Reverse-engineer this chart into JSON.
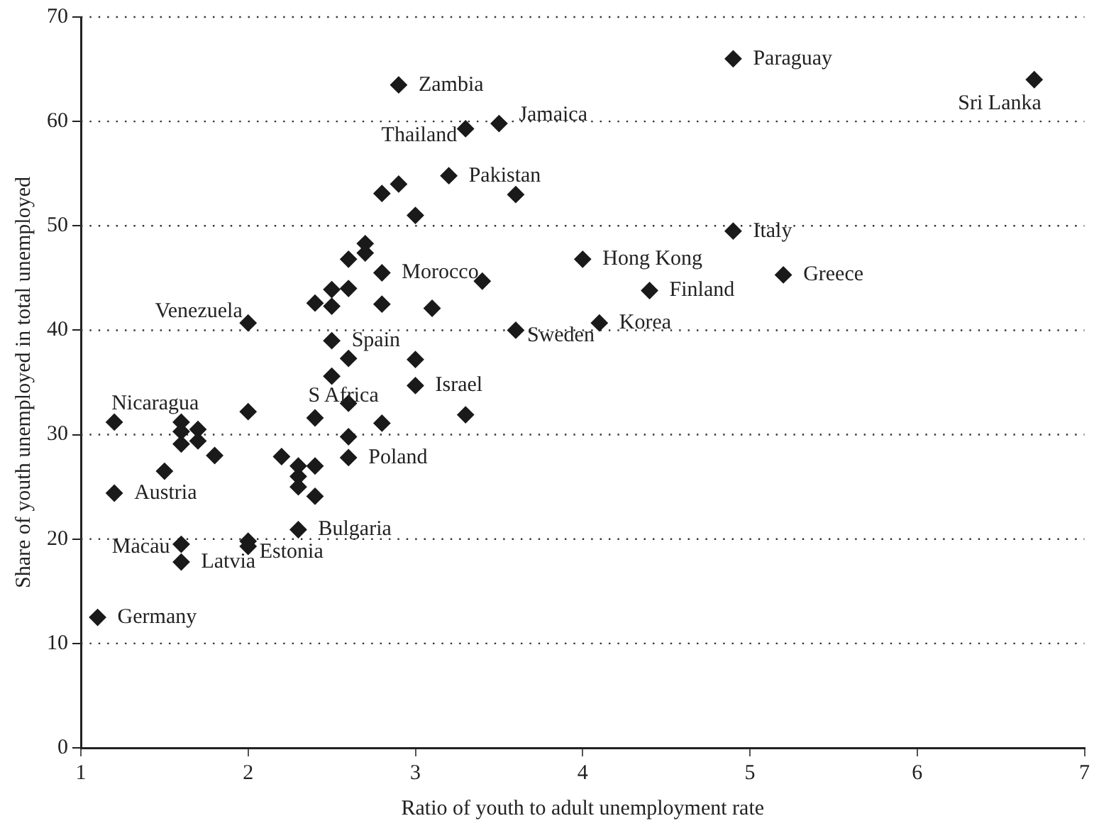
{
  "chart_data": {
    "type": "scatter",
    "xlabel": "Ratio of youth to adult unemployment rate",
    "ylabel": "Share of youth unemployed in total unemployed",
    "xlim": [
      1,
      7
    ],
    "xticks": [
      1,
      2,
      3,
      4,
      5,
      6,
      7
    ],
    "ylim": [
      0,
      70
    ],
    "yticks": [
      0,
      10,
      20,
      30,
      40,
      50,
      60,
      70
    ],
    "grid": "y",
    "marker": "diamond",
    "legend": false,
    "series": [
      {
        "color": "#1a1a1a",
        "x": [
          4.9,
          6.7,
          2.9,
          3.3,
          3.5,
          3.2,
          4.9,
          4.0,
          5.2,
          4.4,
          2.8,
          4.1,
          3.6,
          2.0,
          2.5,
          3.0,
          2.0,
          1.2,
          2.6,
          1.2,
          2.3,
          1.6,
          2.0,
          1.6,
          1.1,
          3.6,
          2.8,
          2.9,
          3.0,
          2.7,
          2.7,
          2.6,
          3.4,
          2.5,
          2.6,
          2.4,
          2.5,
          2.8,
          3.1,
          2.6,
          3.0,
          2.5,
          2.6,
          2.4,
          2.8,
          3.3,
          2.6,
          1.6,
          1.6,
          1.7,
          1.6,
          1.7,
          1.8,
          1.5,
          2.2,
          2.3,
          2.4,
          2.3,
          2.3,
          2.4,
          2.0
        ],
        "values": [
          66,
          64,
          63.5,
          59.3,
          59.8,
          54.8,
          49.5,
          46.8,
          45.3,
          43.8,
          45.5,
          40.7,
          40,
          40.7,
          39,
          34.7,
          32.2,
          31.2,
          27.8,
          24.4,
          20.9,
          19.5,
          19.3,
          17.8,
          12.5,
          53,
          53.1,
          54,
          51,
          48.3,
          47.4,
          46.8,
          44.7,
          43.9,
          44,
          42.6,
          42.3,
          42.5,
          42.1,
          37.3,
          37.2,
          35.6,
          33,
          31.6,
          31.1,
          31.9,
          29.8,
          31.2,
          30.3,
          30.5,
          29.1,
          29.4,
          28,
          26.5,
          27.9,
          27,
          27,
          26,
          25,
          24.1,
          19.8
        ]
      }
    ],
    "annotations": [
      {
        "text": "Paraguay",
        "x": 4.9,
        "y": 66
      },
      {
        "text": "Sri Lanka",
        "x": 6.7,
        "y": 64
      },
      {
        "text": "Zambia",
        "x": 2.9,
        "y": 63.5
      },
      {
        "text": "Thailand",
        "x": 3.3,
        "y": 59.3
      },
      {
        "text": "Jamaica",
        "x": 3.5,
        "y": 59.8
      },
      {
        "text": "Pakistan",
        "x": 3.2,
        "y": 54.8
      },
      {
        "text": "Italy",
        "x": 4.9,
        "y": 49.5
      },
      {
        "text": "Hong Kong",
        "x": 4.0,
        "y": 46.8
      },
      {
        "text": "Greece",
        "x": 5.2,
        "y": 45.3
      },
      {
        "text": "Finland",
        "x": 4.4,
        "y": 43.8
      },
      {
        "text": "Morocco",
        "x": 2.8,
        "y": 45.5
      },
      {
        "text": "Korea",
        "x": 4.1,
        "y": 40.7
      },
      {
        "text": "Sweden",
        "x": 3.6,
        "y": 40
      },
      {
        "text": "Venezuela",
        "x": 2.0,
        "y": 40.7
      },
      {
        "text": "Spain",
        "x": 2.5,
        "y": 39
      },
      {
        "text": "Israel",
        "x": 3.0,
        "y": 34.7
      },
      {
        "text": "S Africa",
        "x": 2.0,
        "y": 32.2
      },
      {
        "text": "Nicaragua",
        "x": 1.2,
        "y": 31.2
      },
      {
        "text": "Poland",
        "x": 2.6,
        "y": 27.8
      },
      {
        "text": "Austria",
        "x": 1.2,
        "y": 24.4
      },
      {
        "text": "Bulgaria",
        "x": 2.3,
        "y": 20.9
      },
      {
        "text": "Macau",
        "x": 1.6,
        "y": 19.5
      },
      {
        "text": "Estonia",
        "x": 2.0,
        "y": 19.3
      },
      {
        "text": "Latvia",
        "x": 1.6,
        "y": 17.8
      },
      {
        "text": "Germany",
        "x": 1.1,
        "y": 12.5
      }
    ]
  }
}
